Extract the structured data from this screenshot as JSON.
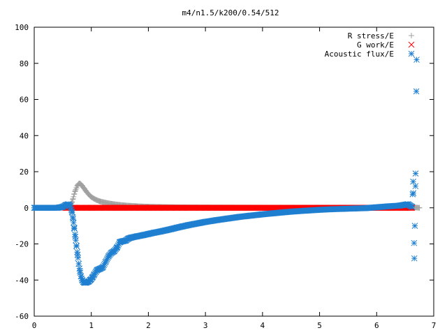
{
  "chart_data": {
    "type": "scatter",
    "title": "m4/n1.5/k200/0.54/512",
    "xlabel": "",
    "ylabel": "",
    "xlim": [
      0,
      7
    ],
    "ylim": [
      -60,
      100
    ],
    "xticks": [
      "0",
      "1",
      "2",
      "3",
      "4",
      "5",
      "6",
      "7"
    ],
    "yticks": [
      "-60",
      "-40",
      "-20",
      "0",
      "20",
      "40",
      "60",
      "80",
      "100"
    ],
    "grid": false,
    "legend_position": "top-right",
    "series": [
      {
        "name": "R stress/E",
        "color": "#a0a0a0",
        "marker": "plus",
        "x": [
          0.0,
          0.2,
          0.4,
          0.55,
          0.6,
          0.63,
          0.66,
          0.68,
          0.7,
          0.72,
          0.74,
          0.76,
          0.78,
          0.8,
          0.82,
          0.84,
          0.86,
          0.88,
          0.9,
          0.92,
          0.95,
          0.98,
          1.0,
          1.05,
          1.1,
          1.15,
          1.2,
          1.3,
          1.4,
          1.5,
          1.6,
          1.8,
          2.0,
          2.5,
          3.0,
          4.0,
          5.0,
          6.0,
          6.6,
          6.75
        ],
        "y": [
          0,
          0,
          0,
          0,
          0.5,
          1.5,
          3.0,
          5.0,
          7.5,
          9.5,
          11.0,
          12.5,
          13.3,
          13.5,
          13.0,
          12.2,
          11.3,
          10.5,
          9.6,
          8.7,
          7.6,
          6.6,
          6.0,
          5.0,
          4.2,
          3.6,
          3.2,
          2.5,
          2.0,
          1.6,
          1.3,
          0.9,
          0.6,
          0.3,
          0.2,
          0.1,
          0.05,
          0.03,
          0.4,
          0.0
        ]
      },
      {
        "name": "G work/E",
        "color": "#ff0000",
        "marker": "cross",
        "x": [
          0.55,
          0.7,
          1.0,
          1.5,
          2.0,
          2.5,
          3.0,
          3.5,
          4.0,
          4.5,
          5.0,
          5.5,
          6.0,
          6.5,
          6.62
        ],
        "y": [
          0,
          0,
          0,
          0,
          0,
          0,
          0,
          0,
          0,
          0,
          0,
          0,
          0,
          0,
          0
        ]
      },
      {
        "name": "Acoustic flux/E",
        "color": "#1f7fd0",
        "marker": "asterisk",
        "x": [
          0.0,
          0.1,
          0.2,
          0.3,
          0.4,
          0.5,
          0.55,
          0.6,
          0.63,
          0.66,
          0.68,
          0.7,
          0.72,
          0.74,
          0.76,
          0.78,
          0.8,
          0.82,
          0.84,
          0.86,
          0.88,
          0.9,
          0.92,
          0.94,
          0.96,
          0.98,
          1.0,
          1.02,
          1.05,
          1.08,
          1.1,
          1.15,
          1.2,
          1.25,
          1.3,
          1.35,
          1.4,
          1.45,
          1.5,
          1.55,
          1.6,
          1.65,
          1.7,
          1.8,
          1.9,
          2.0,
          2.1,
          2.2,
          2.3,
          2.4,
          2.5,
          2.6,
          2.7,
          2.8,
          2.9,
          3.0,
          3.2,
          3.4,
          3.6,
          3.8,
          4.0,
          4.2,
          4.4,
          4.6,
          4.8,
          5.0,
          5.2,
          5.4,
          5.6,
          5.8,
          6.0,
          6.2,
          6.4,
          6.55,
          6.62,
          6.64,
          6.66,
          6.68,
          6.7
        ],
        "y": [
          0,
          0,
          0,
          0,
          0,
          0.5,
          1.5,
          2.0,
          1.0,
          -2.0,
          -6.0,
          -11.0,
          -16.0,
          -21.0,
          -26.0,
          -31.0,
          -35.0,
          -38.0,
          -40.0,
          -41.0,
          -41.5,
          -41.5,
          -41.3,
          -41.0,
          -40.7,
          -40.0,
          -39.5,
          -38.5,
          -37.0,
          -35.5,
          -34.5,
          -33.8,
          -33.0,
          -30.0,
          -27.0,
          -25.0,
          -24.0,
          -22.0,
          -19.0,
          -18.5,
          -18.2,
          -17.0,
          -16.5,
          -15.8,
          -15.2,
          -14.5,
          -13.8,
          -13.2,
          -12.5,
          -11.8,
          -11.0,
          -10.3,
          -9.6,
          -9.0,
          -8.4,
          -7.8,
          -6.8,
          -5.9,
          -5.0,
          -4.3,
          -3.6,
          -3.0,
          -2.4,
          -1.9,
          -1.5,
          -1.1,
          -0.8,
          -0.6,
          -0.4,
          -0.2,
          0.3,
          0.8,
          1.2,
          2.0,
          0.5,
          14.5,
          -28.0,
          12.0,
          82.0
        ]
      }
    ]
  }
}
